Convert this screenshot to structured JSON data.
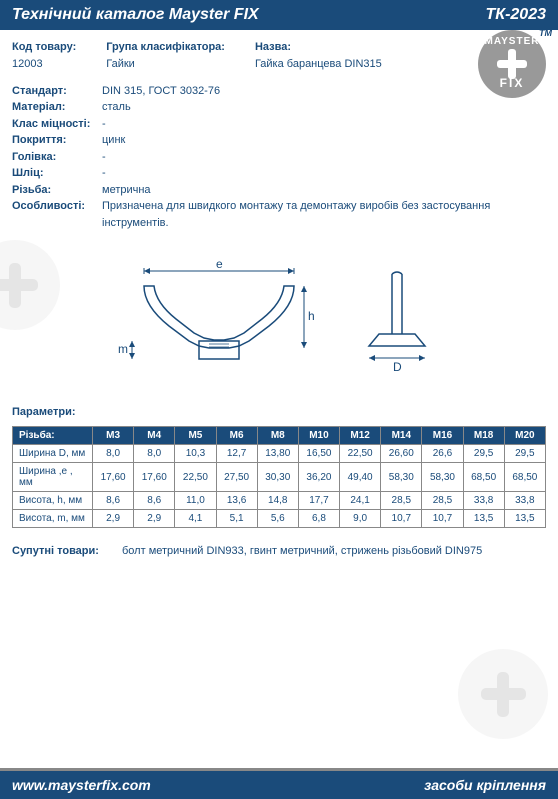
{
  "header": {
    "title": "Технічний каталог Mayster FIX",
    "code": "ТК-2023"
  },
  "logo": {
    "top": "MAYSTER",
    "bottom": "FIX",
    "tm": "TM"
  },
  "info": {
    "code_label": "Код товару:",
    "code_value": "12003",
    "group_label": "Група класифікатора:",
    "group_value": "Гайки",
    "name_label": "Назва:",
    "name_value": "Гайка баранцева DIN315"
  },
  "props": [
    {
      "label": "Стандарт:",
      "value": "DIN 315,  ГОСТ 3032-76"
    },
    {
      "label": "Матеріал:",
      "value": "сталь"
    },
    {
      "label": "Клас міцності:",
      "value": "-"
    },
    {
      "label": "Покриття:",
      "value": "цинк"
    },
    {
      "label": "Голівка:",
      "value": "-"
    },
    {
      "label": "Шліц:",
      "value": "-"
    },
    {
      "label": "Різьба:",
      "value": "метрична"
    },
    {
      "label": "Особливості:",
      "value": "Призначена для швидкого монтажу та демонтажу виробів без застосування інструментів."
    }
  ],
  "params_title": "Параметри:",
  "table": {
    "header": [
      "Різьба:",
      "M3",
      "M4",
      "M5",
      "M6",
      "M8",
      "M10",
      "M12",
      "M14",
      "M16",
      "M18",
      "M20"
    ],
    "rows": [
      [
        "Ширина D, мм",
        "8,0",
        "8,0",
        "10,3",
        "12,7",
        "13,80",
        "16,50",
        "22,50",
        "26,60",
        "26,6",
        "29,5",
        "29,5"
      ],
      [
        "Ширина ,e , мм",
        "17,60",
        "17,60",
        "22,50",
        "27,50",
        "30,30",
        "36,20",
        "49,40",
        "58,30",
        "58,30",
        "68,50",
        "68,50"
      ],
      [
        "Висота, h, мм",
        "8,6",
        "8,6",
        "11,0",
        "13,6",
        "14,8",
        "17,7",
        "24,1",
        "28,5",
        "28,5",
        "33,8",
        "33,8"
      ],
      [
        "Висота, m, мм",
        "2,9",
        "2,9",
        "4,1",
        "5,1",
        "5,6",
        "6,8",
        "9,0",
        "10,7",
        "10,7",
        "13,5",
        "13,5"
      ]
    ]
  },
  "related_label": "Супутні товари:",
  "related_value": "болт метричний DIN933, гвинт метричний, стрижень різьбовий DIN975",
  "footer": {
    "url": "www.maysterfix.com",
    "tagline": "засоби кріплення"
  },
  "diagram": {
    "e": "e",
    "h": "h",
    "m": "m",
    "D": "D"
  }
}
